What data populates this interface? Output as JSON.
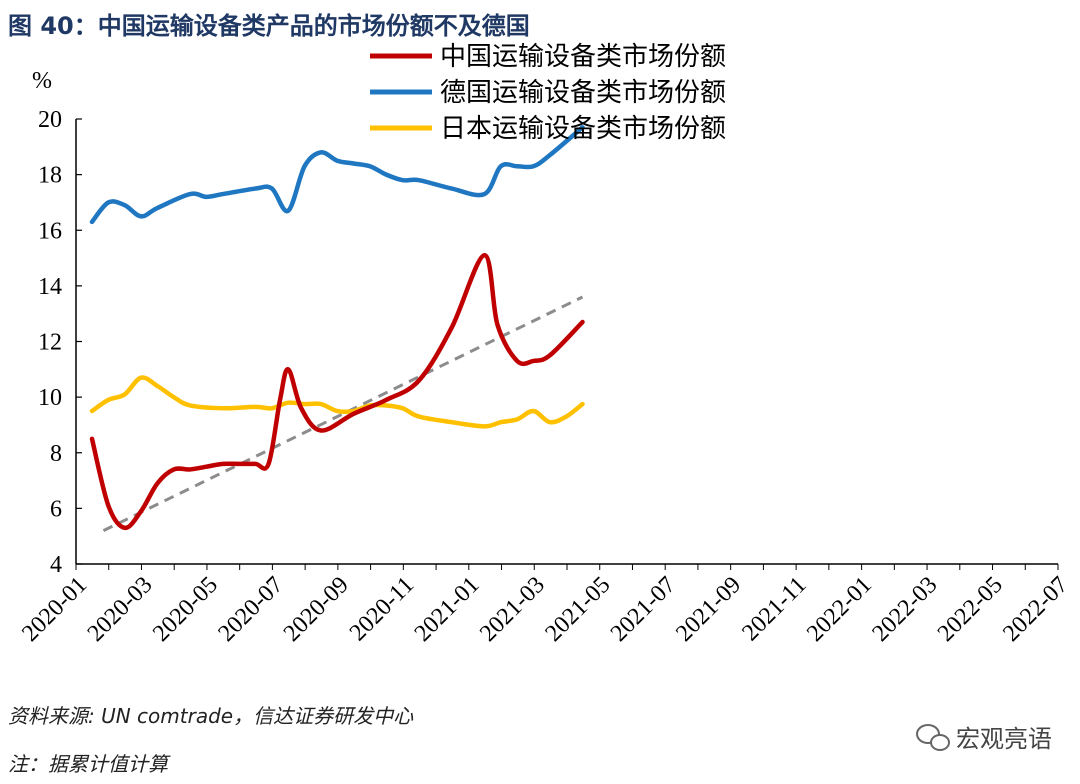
{
  "page": {
    "title": "图 40：中国运输设备类产品的市场份额不及德国",
    "source": "资料来源: UN comtrade，信达证券研发中心",
    "note": "注：据累计值计算",
    "watermark": "宏观亮语"
  },
  "chart_data": {
    "type": "line",
    "ylabel": "%",
    "ylim": [
      4,
      20
    ],
    "yticks": [
      4,
      6,
      8,
      10,
      12,
      14,
      16,
      18,
      20
    ],
    "x_tick_labels": [
      "2020-01",
      "2020-03",
      "2020-05",
      "2020-07",
      "2020-09",
      "2020-11",
      "2021-01",
      "2021-03",
      "2021-05",
      "2021-07",
      "2021-09",
      "2021-11",
      "2022-01",
      "2022-03",
      "2022-05",
      "2022-07"
    ],
    "grid": false,
    "legend_position": "top-center",
    "series": [
      {
        "name": "中国运输设备类市场份额",
        "color": "#c00000",
        "values": [
          [
            0,
            8.5
          ],
          [
            0.5,
            6.1
          ],
          [
            1,
            5.3
          ],
          [
            1.5,
            5.9
          ],
          [
            2,
            6.9
          ],
          [
            2.5,
            7.4
          ],
          [
            3,
            7.4
          ],
          [
            3.5,
            7.5
          ],
          [
            4,
            7.6
          ],
          [
            4.5,
            7.6
          ],
          [
            5,
            7.6
          ],
          [
            5.4,
            7.6
          ],
          [
            5.75,
            9.9
          ],
          [
            6,
            11.0
          ],
          [
            6.4,
            9.6
          ],
          [
            7,
            8.8
          ],
          [
            8,
            9.4
          ],
          [
            9,
            9.9
          ],
          [
            10,
            10.6
          ],
          [
            11,
            12.5
          ],
          [
            12,
            15.1
          ],
          [
            12.4,
            12.6
          ],
          [
            13,
            11.3
          ],
          [
            13.5,
            11.3
          ],
          [
            14,
            11.5
          ],
          [
            15,
            12.7
          ]
        ]
      },
      {
        "name": "德国运输设备类市场份额",
        "color": "#1f77c1",
        "values": [
          [
            0,
            16.3
          ],
          [
            0.5,
            17.0
          ],
          [
            1,
            16.9
          ],
          [
            1.5,
            16.5
          ],
          [
            2,
            16.8
          ],
          [
            3,
            17.3
          ],
          [
            3.5,
            17.2
          ],
          [
            4,
            17.3
          ],
          [
            5,
            17.5
          ],
          [
            5.5,
            17.5
          ],
          [
            6,
            16.7
          ],
          [
            6.5,
            18.3
          ],
          [
            7,
            18.8
          ],
          [
            7.5,
            18.5
          ],
          [
            8,
            18.4
          ],
          [
            8.5,
            18.3
          ],
          [
            9,
            18.0
          ],
          [
            9.5,
            17.8
          ],
          [
            10,
            17.8
          ],
          [
            11,
            17.5
          ],
          [
            12,
            17.3
          ],
          [
            12.5,
            18.3
          ],
          [
            13,
            18.3
          ],
          [
            13.5,
            18.3
          ],
          [
            14,
            18.7
          ],
          [
            15,
            19.7
          ]
        ]
      },
      {
        "name": "日本运输设备类市场份额",
        "color": "#ffc000",
        "values": [
          [
            0,
            9.5
          ],
          [
            0.5,
            9.9
          ],
          [
            1,
            10.1
          ],
          [
            1.5,
            10.7
          ],
          [
            2,
            10.4
          ],
          [
            2.5,
            10.0
          ],
          [
            3,
            9.7
          ],
          [
            4,
            9.6
          ],
          [
            5,
            9.65
          ],
          [
            5.5,
            9.6
          ],
          [
            6,
            9.8
          ],
          [
            6.5,
            9.75
          ],
          [
            7,
            9.75
          ],
          [
            7.5,
            9.5
          ],
          [
            8,
            9.5
          ],
          [
            8.5,
            9.7
          ],
          [
            9,
            9.7
          ],
          [
            9.5,
            9.6
          ],
          [
            10,
            9.3
          ],
          [
            11,
            9.1
          ],
          [
            12,
            8.95
          ],
          [
            12.5,
            9.1
          ],
          [
            13,
            9.2
          ],
          [
            13.5,
            9.5
          ],
          [
            14,
            9.1
          ],
          [
            14.5,
            9.3
          ],
          [
            15,
            9.75
          ]
        ]
      }
    ],
    "trendline": {
      "style": "dashed",
      "color": "#8c8c8c",
      "x": [
        0.35,
        15
      ],
      "y": [
        5.2,
        13.6
      ]
    }
  }
}
